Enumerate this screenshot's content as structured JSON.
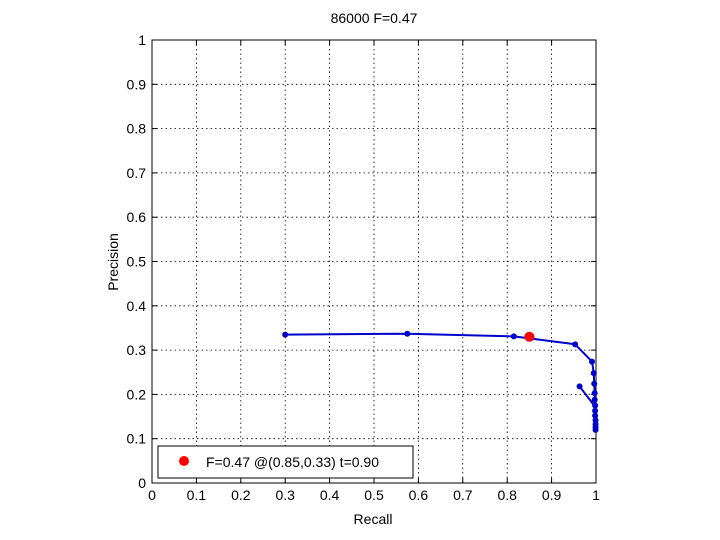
{
  "chart_data": {
    "type": "line",
    "title": "86000 F=0.47",
    "xlabel": "Recall",
    "ylabel": "Precision",
    "xlim": [
      0,
      1
    ],
    "ylim": [
      0,
      1
    ],
    "xticks": [
      "0",
      "0.1",
      "0.2",
      "0.3",
      "0.4",
      "0.5",
      "0.6",
      "0.7",
      "0.8",
      "0.9",
      "1"
    ],
    "yticks": [
      "0",
      "0.1",
      "0.2",
      "0.3",
      "0.4",
      "0.5",
      "0.6",
      "0.7",
      "0.8",
      "0.9",
      "1"
    ],
    "grid": true,
    "series": [
      {
        "color": "#0000cc",
        "points": [
          [
            0.3,
            0.335
          ],
          [
            0.575,
            0.337
          ],
          [
            0.815,
            0.331
          ],
          [
            0.953,
            0.313
          ],
          [
            0.991,
            0.274
          ],
          [
            0.995,
            0.248
          ],
          [
            0.996,
            0.224
          ],
          [
            0.997,
            0.203
          ],
          [
            0.997,
            0.188
          ],
          [
            0.998,
            0.175
          ],
          [
            0.998,
            0.163
          ],
          [
            0.998,
            0.152
          ],
          [
            0.999,
            0.142
          ],
          [
            0.999,
            0.133
          ],
          [
            0.999,
            0.126
          ],
          [
            0.999,
            0.12
          ]
        ],
        "extra_segment": [
          [
            0.963,
            0.218
          ],
          [
            0.996,
            0.175
          ]
        ]
      }
    ],
    "best_point": {
      "x": 0.85,
      "y": 0.33,
      "color": "#ff0000"
    },
    "legend": {
      "label": "F=0.47 @(0.85,0.33) t=0.90",
      "position": "bottom-left"
    }
  }
}
